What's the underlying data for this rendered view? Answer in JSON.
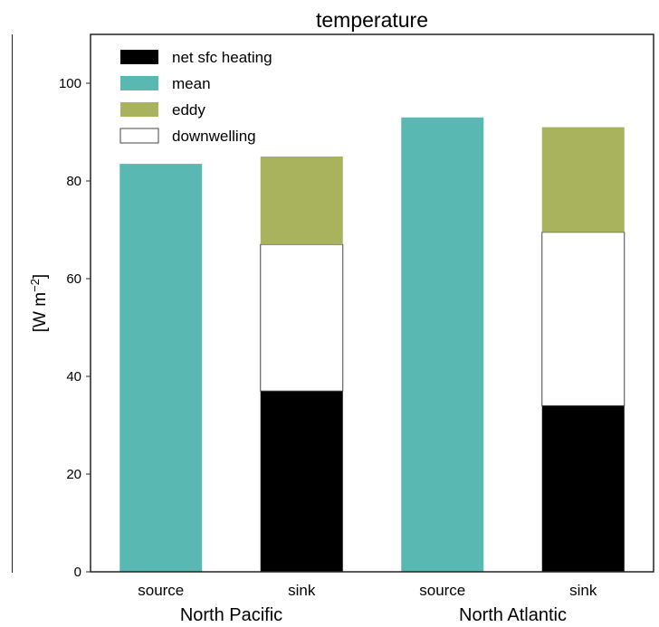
{
  "chart_data": {
    "type": "bar",
    "stacked": true,
    "title": "temperature",
    "ylabel": "[W m",
    "ylabel_sup": "−2",
    "ylabel_close": "]",
    "ylim": [
      0,
      110
    ],
    "yticks": [
      0,
      20,
      40,
      60,
      80,
      100
    ],
    "grid": false,
    "legend_position": "top-left",
    "categories": [
      "source",
      "sink",
      "source",
      "sink"
    ],
    "groups": [
      {
        "label": "North Pacific",
        "category_indices": [
          0,
          1
        ]
      },
      {
        "label": "North Atlantic",
        "category_indices": [
          2,
          3
        ]
      }
    ],
    "series": [
      {
        "name": "net sfc heating",
        "color": "#000000",
        "values": [
          0,
          37,
          0,
          34
        ]
      },
      {
        "name": "mean",
        "color": "#5ab8b3",
        "values": [
          83.5,
          0,
          93,
          0
        ]
      },
      {
        "name": "eddy",
        "color": "#a9b25c",
        "values": [
          0,
          18,
          0,
          21.5
        ]
      },
      {
        "name": "downwelling",
        "color": "#ffffff",
        "values": [
          0,
          30,
          0,
          35.5
        ]
      }
    ],
    "stack_order": [
      "net sfc heating",
      "downwelling",
      "eddy",
      "mean"
    ]
  }
}
